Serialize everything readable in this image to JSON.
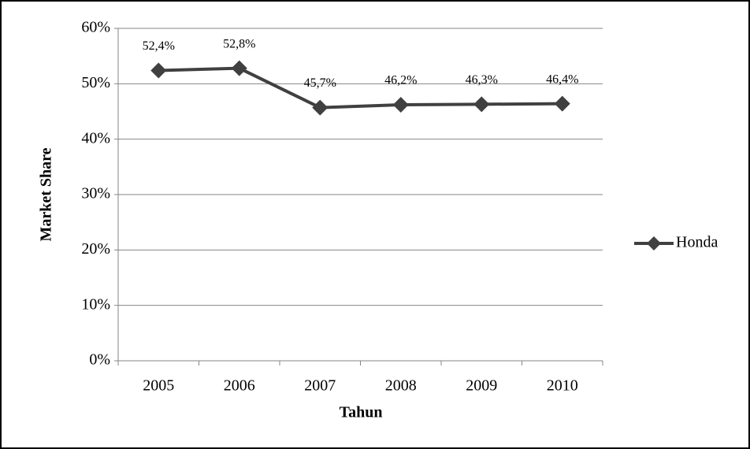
{
  "chart_data": {
    "type": "line",
    "x_label": "Tahun",
    "y_label": "Market Share",
    "categories": [
      "2005",
      "2006",
      "2007",
      "2008",
      "2009",
      "2010"
    ],
    "series": [
      {
        "name": "Honda",
        "color": "#404040",
        "values": [
          52.4,
          52.8,
          45.7,
          46.2,
          46.3,
          46.4
        ],
        "value_labels": [
          "52,4%",
          "52,8%",
          "45,7%",
          "46,2%",
          "46,3%",
          "46,4%"
        ]
      }
    ],
    "ylim": [
      0,
      60
    ],
    "yticks": [
      {
        "value": 0,
        "label": "0%"
      },
      {
        "value": 10,
        "label": "10%"
      },
      {
        "value": 20,
        "label": "20%"
      },
      {
        "value": 30,
        "label": "30%"
      },
      {
        "value": 40,
        "label": "40%"
      },
      {
        "value": 50,
        "label": "50%"
      },
      {
        "value": 60,
        "label": "60%"
      }
    ],
    "grid": true,
    "legend": "right"
  }
}
